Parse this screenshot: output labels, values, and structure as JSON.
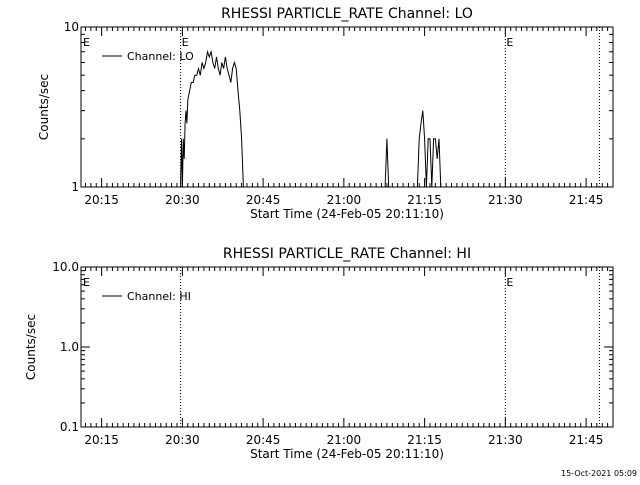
{
  "footer": {
    "timestamp": "15-Oct-2021 05:09"
  },
  "chart_data": [
    {
      "type": "line",
      "title": "RHESSI PARTICLE_RATE Channel: LO",
      "xlabel": "Start Time (24-Feb-05 20:11:10)",
      "ylabel": "Counts/sec",
      "y_scale": "log",
      "ylim": [
        1,
        10
      ],
      "xlim": [
        "20:11:10",
        "21:50:00"
      ],
      "y_ticks": [
        "1",
        "10"
      ],
      "x_ticks": [
        "20:15",
        "20:30",
        "20:45",
        "21:00",
        "21:15",
        "21:30",
        "21:45"
      ],
      "legend": {
        "position": "top-left",
        "entries": [
          "Channel: LO"
        ]
      },
      "markers": [
        {
          "time": "20:29:40",
          "label": "E"
        },
        {
          "time": "21:30:00",
          "label": "E"
        },
        {
          "time": "21:47:30",
          "label": ""
        }
      ],
      "corner_marker": "E",
      "series": [
        {
          "name": "Channel: LO",
          "x": [
            "20:29:40",
            "20:29:50",
            "20:30:00",
            "20:30:10",
            "20:30:20",
            "20:30:30",
            "20:30:40",
            "20:30:50",
            "20:31:00",
            "20:31:20",
            "20:31:40",
            "20:32:00",
            "20:32:20",
            "20:32:40",
            "20:33:00",
            "20:33:20",
            "20:33:40",
            "20:34:00",
            "20:34:20",
            "20:34:40",
            "20:35:00",
            "20:35:20",
            "20:35:40",
            "20:36:00",
            "20:36:20",
            "20:36:40",
            "20:37:00",
            "20:37:20",
            "20:37:40",
            "20:38:00",
            "20:38:20",
            "20:38:40",
            "20:39:00",
            "20:39:20",
            "20:39:40",
            "20:40:00",
            "20:40:20",
            "20:40:40",
            "20:41:00",
            "20:41:20",
            "21:07:40",
            "21:08:00",
            "21:08:20",
            "21:08:40",
            "21:13:40",
            "21:14:00",
            "21:14:20",
            "21:14:40",
            "21:15:00",
            "21:15:20",
            "21:15:40",
            "21:16:00",
            "21:16:20",
            "21:16:40",
            "21:17:00",
            "21:17:20",
            "21:17:40",
            "21:18:00",
            "21:18:20",
            "21:18:40"
          ],
          "y": [
            1.0,
            2.0,
            1.0,
            2.0,
            1.5,
            2.5,
            3.0,
            2.5,
            3.5,
            4.0,
            4.5,
            4.5,
            5.0,
            5.0,
            5.5,
            5.0,
            6.0,
            5.5,
            6.0,
            7.0,
            6.5,
            7.0,
            6.0,
            5.5,
            6.5,
            5.5,
            5.0,
            6.0,
            5.5,
            6.5,
            5.5,
            5.0,
            4.5,
            5.5,
            6.0,
            5.5,
            4.0,
            3.0,
            2.0,
            1.0,
            1.0,
            2.0,
            1.0,
            1.0,
            1.0,
            2.0,
            2.5,
            3.0,
            2.0,
            1.0,
            2.0,
            2.0,
            1.0,
            2.0,
            2.0,
            1.5,
            2.0,
            1.0,
            1.0,
            1.0
          ]
        }
      ]
    },
    {
      "type": "line",
      "title": "RHESSI PARTICLE_RATE Channel: HI",
      "xlabel": "Start Time (24-Feb-05 20:11:10)",
      "ylabel": "Counts/sec",
      "y_scale": "log",
      "ylim": [
        0.1,
        10
      ],
      "xlim": [
        "20:11:10",
        "21:50:00"
      ],
      "y_ticks": [
        "0.1",
        "1.0",
        "10.0"
      ],
      "x_ticks": [
        "20:15",
        "20:30",
        "20:45",
        "21:00",
        "21:15",
        "21:30",
        "21:45"
      ],
      "legend": {
        "position": "top-left",
        "entries": [
          "Channel: HI"
        ]
      },
      "markers": [
        {
          "time": "20:29:40",
          "label": ""
        },
        {
          "time": "21:30:00",
          "label": "E"
        },
        {
          "time": "21:47:30",
          "label": ""
        }
      ],
      "corner_marker": "E",
      "series": [
        {
          "name": "Channel: HI",
          "x": [],
          "y": []
        }
      ]
    }
  ]
}
